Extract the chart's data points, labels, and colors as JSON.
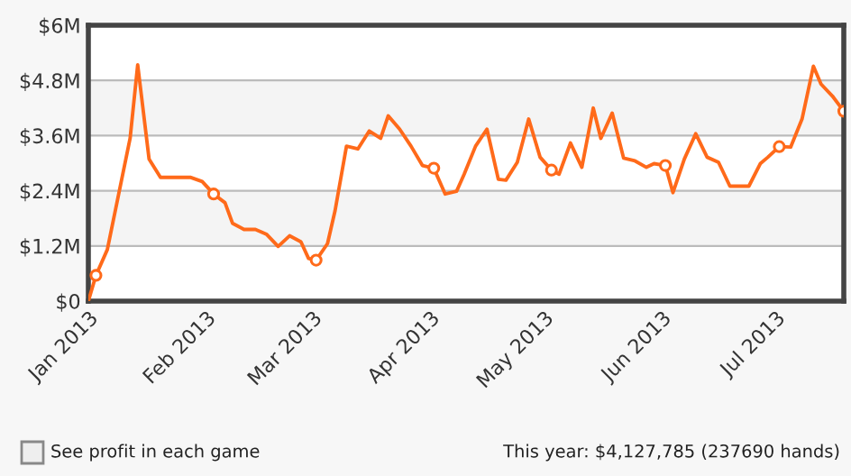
{
  "chart_data": {
    "type": "line",
    "x": [
      "2013-01-01",
      "2013-01-03",
      "2013-01-06",
      "2013-01-12",
      "2013-01-14",
      "2013-01-17",
      "2013-01-20",
      "2013-01-28",
      "2013-01-31",
      "2013-02-03",
      "2013-02-06",
      "2013-02-08",
      "2013-02-11",
      "2013-02-14",
      "2013-02-17",
      "2013-02-20",
      "2013-02-23",
      "2013-02-26",
      "2013-02-28",
      "2013-03-02",
      "2013-03-05",
      "2013-03-07",
      "2013-03-10",
      "2013-03-13",
      "2013-03-16",
      "2013-03-19",
      "2013-03-21",
      "2013-03-24",
      "2013-03-27",
      "2013-03-30",
      "2013-04-02",
      "2013-04-05",
      "2013-04-08",
      "2013-04-10",
      "2013-04-13",
      "2013-04-16",
      "2013-04-19",
      "2013-04-21",
      "2013-04-24",
      "2013-04-27",
      "2013-04-30",
      "2013-05-03",
      "2013-05-05",
      "2013-05-08",
      "2013-05-11",
      "2013-05-14",
      "2013-05-16",
      "2013-05-19",
      "2013-05-22",
      "2013-05-25",
      "2013-05-28",
      "2013-05-30",
      "2013-06-02",
      "2013-06-04",
      "2013-06-07",
      "2013-06-10",
      "2013-06-13",
      "2013-06-16",
      "2013-06-19",
      "2013-06-24",
      "2013-06-27",
      "2013-06-29",
      "2013-07-02",
      "2013-07-05",
      "2013-07-08",
      "2013-07-11",
      "2013-07-13",
      "2013-07-16",
      "2013-07-19"
    ],
    "series": [
      {
        "color": "#ff6a1a",
        "marker": "none",
        "values": [
          0,
          0.56,
          1.12,
          3.54,
          5.14,
          3.09,
          2.69,
          2.69,
          2.6,
          2.33,
          2.14,
          1.69,
          1.56,
          1.56,
          1.45,
          1.19,
          1.42,
          1.29,
          0.93,
          0.89,
          1.25,
          1.97,
          3.37,
          3.31,
          3.7,
          3.54,
          4.03,
          3.74,
          3.37,
          2.95,
          2.89,
          2.33,
          2.39,
          2.76,
          3.37,
          3.74,
          2.65,
          2.63,
          3.02,
          3.96,
          3.13,
          2.85,
          2.76,
          3.44,
          2.91,
          4.2,
          3.54,
          4.09,
          3.11,
          3.05,
          2.91,
          2.99,
          2.95,
          2.36,
          3.09,
          3.64,
          3.13,
          3.02,
          2.5,
          2.5,
          2.99,
          3.13,
          3.36,
          3.35,
          3.96,
          5.11,
          4.72,
          4.46,
          4.13
        ]
      },
      {
        "type": "scatter",
        "color": "#ff6a1a",
        "marker": "circle",
        "x": [
          "2013-01-03",
          "2013-02-03",
          "2013-03-02",
          "2013-04-02",
          "2013-05-03",
          "2013-06-02",
          "2013-07-02",
          "2013-07-19"
        ],
        "values": [
          0.56,
          2.33,
          0.89,
          2.89,
          2.85,
          2.95,
          3.36,
          4.13
        ]
      }
    ],
    "xlim": [
      "2013-01-01",
      "2013-07-19"
    ],
    "xticks": [
      {
        "value": "2013-01-01",
        "label": "Jan 2013"
      },
      {
        "value": "2013-02-01",
        "label": "Feb 2013"
      },
      {
        "value": "2013-03-01",
        "label": "Mar 2013"
      },
      {
        "value": "2013-04-01",
        "label": "Apr 2013"
      },
      {
        "value": "2013-05-01",
        "label": "May 2013"
      },
      {
        "value": "2013-06-01",
        "label": "Jun 2013"
      },
      {
        "value": "2013-07-01",
        "label": "Jul 2013"
      }
    ],
    "ylim": [
      0,
      6
    ],
    "yticks": [
      {
        "value": 0,
        "label": "$0"
      },
      {
        "value": 1.2,
        "label": "$1.2M"
      },
      {
        "value": 2.4,
        "label": "$2.4M"
      },
      {
        "value": 3.6,
        "label": "$3.6M"
      },
      {
        "value": 4.8,
        "label": "$4.8M"
      },
      {
        "value": 6,
        "label": "$6M"
      }
    ],
    "grid": "y",
    "legend": false,
    "annotations": [
      "See profit in each game",
      "This year: $4,127,785 (237690 hands)"
    ]
  }
}
